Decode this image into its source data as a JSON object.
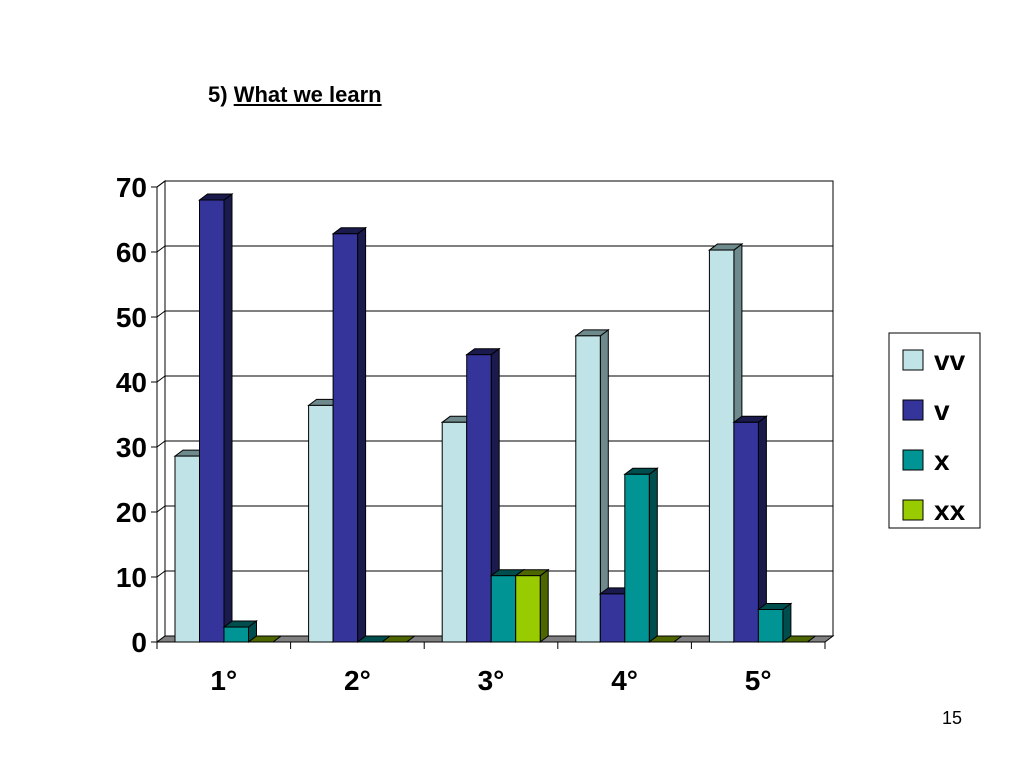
{
  "slide": {
    "heading_prefix": "5)",
    "heading_title": "What we learn",
    "page_number": "15"
  },
  "chart_data": {
    "type": "bar",
    "style": "3d-clustered-column",
    "title": "",
    "xlabel": "",
    "ylabel": "",
    "categories": [
      "1°",
      "2°",
      "3°",
      "4°",
      "5°"
    ],
    "series": [
      {
        "name": "vv",
        "values": [
          28.6,
          36.4,
          33.8,
          47.1,
          60.3
        ],
        "color": "#bfe3e6",
        "side_color": "#6e8a8c"
      },
      {
        "name": "v",
        "values": [
          68.0,
          62.8,
          44.2,
          7.4,
          33.8
        ],
        "color": "#35349b",
        "side_color": "#1a1a4d"
      },
      {
        "name": "x",
        "values": [
          2.3,
          0,
          10.2,
          25.8,
          5.0
        ],
        "color": "#009494",
        "side_color": "#004d4d"
      },
      {
        "name": "xx",
        "values": [
          0,
          0,
          10.2,
          0,
          0
        ],
        "color": "#99cc00",
        "side_color": "#4d6600"
      }
    ],
    "ylim": [
      0,
      70
    ],
    "yticks": [
      0,
      10,
      20,
      30,
      40,
      50,
      60,
      70
    ],
    "grid": true,
    "legend": "right"
  }
}
